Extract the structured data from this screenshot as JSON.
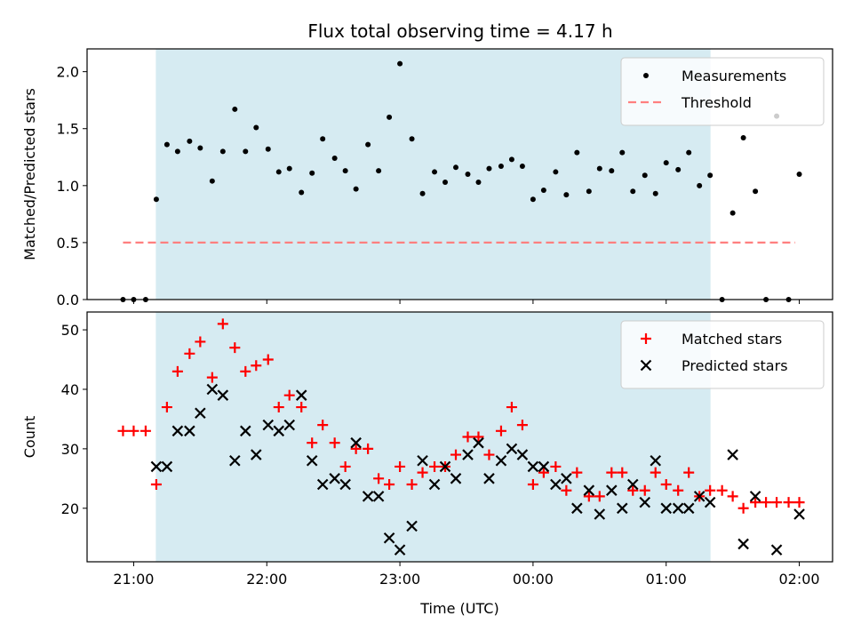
{
  "title": "Flux total observing time = 4.17 h",
  "colors": {
    "shade": "#add8e6",
    "threshold": "#ff7f7f",
    "matched": "#ff0000",
    "predicted": "#000000",
    "measurement": "#000000"
  },
  "chart_data": [
    {
      "type": "scatter",
      "ylabel": "Matched/Predicted stars",
      "ylim": [
        0.0,
        2.2
      ],
      "yticks": [
        "0.0",
        "0.5",
        "1.0",
        "1.5",
        "2.0"
      ],
      "x_unit": "hours after 21:00 UTC",
      "xlim": [
        -0.35,
        5.25
      ],
      "shaded_interval": [
        "21:10",
        "01:20"
      ],
      "legend": {
        "position": "top-right",
        "entries": [
          "Measurements",
          "Threshold"
        ]
      },
      "series": [
        {
          "name": "Measurements",
          "marker": "dot",
          "points": [
            [
              -0.08,
              0.0
            ],
            [
              0.0,
              0.0
            ],
            [
              0.09,
              0.0
            ],
            [
              0.17,
              0.88
            ],
            [
              0.25,
              1.36
            ],
            [
              0.33,
              1.3
            ],
            [
              0.42,
              1.39
            ],
            [
              0.5,
              1.33
            ],
            [
              0.59,
              1.04
            ],
            [
              0.67,
              1.3
            ],
            [
              0.76,
              1.67
            ],
            [
              0.84,
              1.3
            ],
            [
              0.92,
              1.51
            ],
            [
              1.01,
              1.32
            ],
            [
              1.09,
              1.12
            ],
            [
              1.17,
              1.15
            ],
            [
              1.26,
              0.94
            ],
            [
              1.34,
              1.11
            ],
            [
              1.42,
              1.41
            ],
            [
              1.51,
              1.24
            ],
            [
              1.59,
              1.13
            ],
            [
              1.67,
              0.97
            ],
            [
              1.76,
              1.36
            ],
            [
              1.84,
              1.13
            ],
            [
              1.92,
              1.6
            ],
            [
              2.0,
              2.07
            ],
            [
              2.09,
              1.41
            ],
            [
              2.17,
              0.93
            ],
            [
              2.26,
              1.12
            ],
            [
              2.34,
              1.03
            ],
            [
              2.42,
              1.16
            ],
            [
              2.51,
              1.1
            ],
            [
              2.59,
              1.03
            ],
            [
              2.67,
              1.15
            ],
            [
              2.76,
              1.17
            ],
            [
              2.84,
              1.23
            ],
            [
              2.92,
              1.17
            ],
            [
              3.0,
              0.88
            ],
            [
              3.08,
              0.96
            ],
            [
              3.17,
              1.12
            ],
            [
              3.25,
              0.92
            ],
            [
              3.33,
              1.29
            ],
            [
              3.42,
              0.95
            ],
            [
              3.5,
              1.15
            ],
            [
              3.59,
              1.13
            ],
            [
              3.67,
              1.29
            ],
            [
              3.75,
              0.95
            ],
            [
              3.84,
              1.09
            ],
            [
              3.92,
              0.93
            ],
            [
              4.0,
              1.2
            ],
            [
              4.09,
              1.14
            ],
            [
              4.17,
              1.29
            ],
            [
              4.25,
              1.0
            ],
            [
              4.33,
              1.09
            ],
            [
              4.42,
              0.0
            ],
            [
              4.5,
              0.76
            ],
            [
              4.58,
              1.42
            ],
            [
              4.67,
              0.95
            ],
            [
              4.75,
              0.0
            ],
            [
              4.83,
              1.61
            ],
            [
              4.92,
              0.0
            ],
            [
              5.0,
              1.1
            ]
          ]
        },
        {
          "name": "Threshold",
          "marker": "dashed-line",
          "points": [
            [
              -0.08,
              0.5
            ],
            [
              4.97,
              0.5
            ]
          ]
        }
      ]
    },
    {
      "type": "scatter",
      "ylabel": "Count",
      "xlabel": "Time (UTC)",
      "ylim": [
        11,
        53
      ],
      "yticks": [
        "20",
        "30",
        "40",
        "50"
      ],
      "x_unit": "hours after 21:00 UTC",
      "xlim": [
        -0.35,
        5.25
      ],
      "xticks": [
        "21:00",
        "22:00",
        "23:00",
        "00:00",
        "01:00",
        "02:00"
      ],
      "shaded_interval": [
        "21:10",
        "01:20"
      ],
      "legend": {
        "position": "top-right",
        "entries": [
          "Matched stars",
          "Predicted stars"
        ]
      },
      "series": [
        {
          "name": "Matched stars",
          "marker": "plus",
          "points": [
            [
              -0.08,
              33
            ],
            [
              0.0,
              33
            ],
            [
              0.09,
              33
            ],
            [
              0.17,
              24
            ],
            [
              0.25,
              37
            ],
            [
              0.33,
              43
            ],
            [
              0.42,
              46
            ],
            [
              0.5,
              48
            ],
            [
              0.59,
              42
            ],
            [
              0.67,
              51
            ],
            [
              0.76,
              47
            ],
            [
              0.84,
              43
            ],
            [
              0.92,
              44
            ],
            [
              1.01,
              45
            ],
            [
              1.09,
              37
            ],
            [
              1.17,
              39
            ],
            [
              1.26,
              37
            ],
            [
              1.34,
              31
            ],
            [
              1.42,
              34
            ],
            [
              1.51,
              31
            ],
            [
              1.59,
              27
            ],
            [
              1.67,
              30
            ],
            [
              1.76,
              30
            ],
            [
              1.84,
              25
            ],
            [
              1.92,
              24
            ],
            [
              2.0,
              27
            ],
            [
              2.09,
              24
            ],
            [
              2.17,
              26
            ],
            [
              2.26,
              27
            ],
            [
              2.34,
              27
            ],
            [
              2.42,
              29
            ],
            [
              2.51,
              32
            ],
            [
              2.59,
              32
            ],
            [
              2.67,
              29
            ],
            [
              2.76,
              33
            ],
            [
              2.84,
              37
            ],
            [
              2.92,
              34
            ],
            [
              3.0,
              24
            ],
            [
              3.08,
              26
            ],
            [
              3.17,
              27
            ],
            [
              3.25,
              23
            ],
            [
              3.33,
              26
            ],
            [
              3.42,
              22
            ],
            [
              3.5,
              22
            ],
            [
              3.59,
              26
            ],
            [
              3.67,
              26
            ],
            [
              3.75,
              23
            ],
            [
              3.84,
              23
            ],
            [
              3.92,
              26
            ],
            [
              4.0,
              24
            ],
            [
              4.09,
              23
            ],
            [
              4.17,
              26
            ],
            [
              4.25,
              22
            ],
            [
              4.33,
              23
            ],
            [
              4.42,
              23
            ],
            [
              4.5,
              22
            ],
            [
              4.58,
              20
            ],
            [
              4.67,
              21
            ],
            [
              4.75,
              21
            ],
            [
              4.83,
              21
            ],
            [
              4.92,
              21
            ],
            [
              5.0,
              21
            ]
          ]
        },
        {
          "name": "Predicted stars",
          "marker": "x",
          "points": [
            [
              0.17,
              27
            ],
            [
              0.25,
              27
            ],
            [
              0.33,
              33
            ],
            [
              0.42,
              33
            ],
            [
              0.5,
              36
            ],
            [
              0.59,
              40
            ],
            [
              0.67,
              39
            ],
            [
              0.76,
              28
            ],
            [
              0.84,
              33
            ],
            [
              0.92,
              29
            ],
            [
              1.01,
              34
            ],
            [
              1.09,
              33
            ],
            [
              1.17,
              34
            ],
            [
              1.26,
              39
            ],
            [
              1.34,
              28
            ],
            [
              1.42,
              24
            ],
            [
              1.51,
              25
            ],
            [
              1.59,
              24
            ],
            [
              1.67,
              31
            ],
            [
              1.76,
              22
            ],
            [
              1.84,
              22
            ],
            [
              1.92,
              15
            ],
            [
              2.0,
              13
            ],
            [
              2.09,
              17
            ],
            [
              2.17,
              28
            ],
            [
              2.26,
              24
            ],
            [
              2.34,
              27
            ],
            [
              2.42,
              25
            ],
            [
              2.51,
              29
            ],
            [
              2.59,
              31
            ],
            [
              2.67,
              25
            ],
            [
              2.76,
              28
            ],
            [
              2.84,
              30
            ],
            [
              2.92,
              29
            ],
            [
              3.0,
              27
            ],
            [
              3.08,
              27
            ],
            [
              3.17,
              24
            ],
            [
              3.25,
              25
            ],
            [
              3.33,
              20
            ],
            [
              3.42,
              23
            ],
            [
              3.5,
              19
            ],
            [
              3.59,
              23
            ],
            [
              3.67,
              20
            ],
            [
              3.75,
              24
            ],
            [
              3.84,
              21
            ],
            [
              3.92,
              28
            ],
            [
              4.0,
              20
            ],
            [
              4.09,
              20
            ],
            [
              4.17,
              20
            ],
            [
              4.25,
              22
            ],
            [
              4.33,
              21
            ],
            [
              4.5,
              29
            ],
            [
              4.58,
              14
            ],
            [
              4.67,
              22
            ],
            [
              4.83,
              13
            ],
            [
              5.0,
              19
            ]
          ]
        }
      ]
    }
  ]
}
